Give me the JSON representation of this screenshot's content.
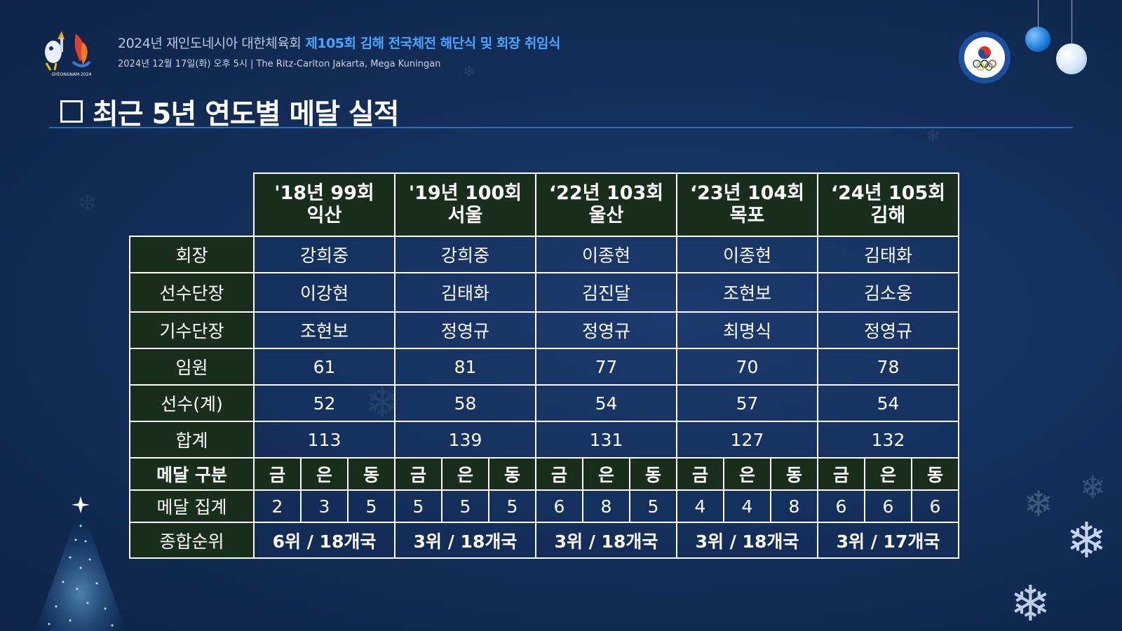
{
  "header": {
    "org": "2024년 재인도네시아 대한체육회",
    "event": "제105회 김해 전국체전 해단식 및 회장 취임식",
    "details": "2024년 12월 17일(화) 오후 5시 | The Ritz-Carlton Jakarta, Mega Kuningan",
    "logo_text": "GYEONGNAM 2024"
  },
  "title": "최근 5년 연도별 메달 실적",
  "table": {
    "years": [
      {
        "line1": "'18년 99회",
        "line2": "익산"
      },
      {
        "line1": "'19년 100회",
        "line2": "서울"
      },
      {
        "line1": "‘22년 103회",
        "line2": "울산"
      },
      {
        "line1": "‘23년 104회",
        "line2": "목포"
      },
      {
        "line1": "‘24년 105회",
        "line2": "김해"
      }
    ],
    "rows": [
      {
        "label": "회장",
        "values": [
          "강희중",
          "강희중",
          "이종현",
          "이종현",
          "김태화"
        ]
      },
      {
        "label": "선수단장",
        "values": [
          "이강현",
          "김태화",
          "김진달",
          "조현보",
          "김소웅"
        ]
      },
      {
        "label": "기수단장",
        "values": [
          "조현보",
          "정영규",
          "정영규",
          "최명식",
          "정영규"
        ]
      },
      {
        "label": "임원",
        "values": [
          "61",
          "81",
          "77",
          "70",
          "78"
        ]
      },
      {
        "label": "선수(계)",
        "values": [
          "52",
          "58",
          "54",
          "57",
          "54"
        ]
      },
      {
        "label": "합계",
        "values": [
          "113",
          "139",
          "131",
          "127",
          "132"
        ]
      }
    ],
    "medal_header_label": "메달 구분",
    "medal_types": [
      "금",
      "은",
      "동"
    ],
    "medal_count_label": "메달 집계",
    "medal_counts": [
      [
        "2",
        "3",
        "5"
      ],
      [
        "5",
        "5",
        "5"
      ],
      [
        "6",
        "8",
        "5"
      ],
      [
        "4",
        "4",
        "8"
      ],
      [
        "6",
        "6",
        "6"
      ]
    ],
    "rank_label": "종합순위",
    "ranks": [
      "6위  / 18개국",
      "3위  / 18개국",
      "3위 / 18개국",
      "3위 / 18개국",
      "3위 / 17개국"
    ]
  },
  "colors": {
    "background": "#14305c",
    "header_cell": "#1a2e1e",
    "event_text": "#49a4ff",
    "rule": "#2c6fb5"
  }
}
